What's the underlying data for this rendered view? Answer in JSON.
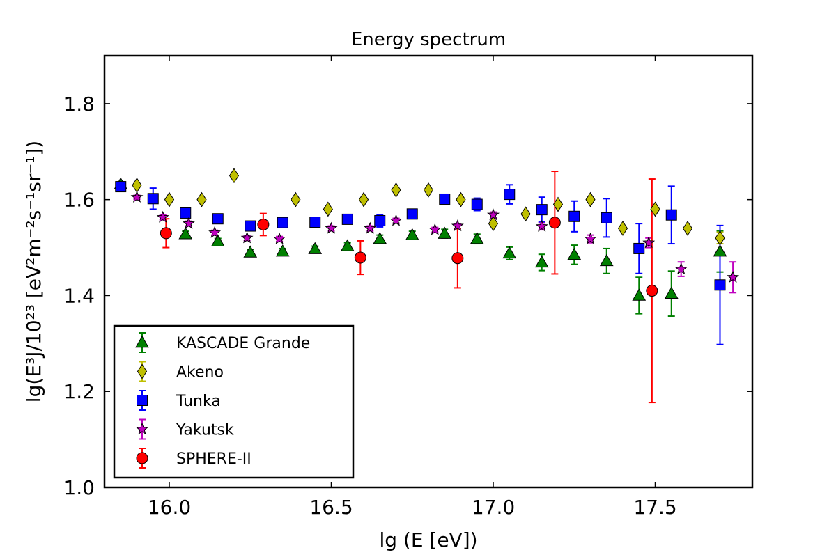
{
  "chart_data": {
    "type": "scatter",
    "title": "Energy spectrum",
    "xlabel": "lg (E [eV])",
    "ylabel": "lg(E³J/10²³ [eV²m⁻²s⁻¹sr⁻¹])",
    "xlim": [
      15.8,
      17.8
    ],
    "ylim": [
      1.0,
      1.9
    ],
    "xticks": [
      16.0,
      16.5,
      17.0,
      17.5
    ],
    "xtick_labels": [
      "16.0",
      "16.5",
      "17.0",
      "17.5"
    ],
    "yticks": [
      1.0,
      1.2,
      1.4,
      1.6,
      1.8
    ],
    "ytick_labels": [
      "1.0",
      "1.2",
      "1.4",
      "1.6",
      "1.8"
    ],
    "grid": false,
    "legend_position": "lower-left",
    "series": [
      {
        "name": "KASCADE Grande",
        "marker": "triangle",
        "color": "#008000",
        "points": [
          {
            "x": 15.85,
            "y": 1.632,
            "err": 0.005
          },
          {
            "x": 16.05,
            "y": 1.528,
            "err": 0.006
          },
          {
            "x": 16.15,
            "y": 1.513,
            "err": 0.006
          },
          {
            "x": 16.25,
            "y": 1.49,
            "err": 0.006
          },
          {
            "x": 16.35,
            "y": 1.492,
            "err": 0.006
          },
          {
            "x": 16.45,
            "y": 1.497,
            "err": 0.006
          },
          {
            "x": 16.55,
            "y": 1.503,
            "err": 0.007
          },
          {
            "x": 16.65,
            "y": 1.518,
            "err": 0.008
          },
          {
            "x": 16.75,
            "y": 1.526,
            "err": 0.008
          },
          {
            "x": 16.85,
            "y": 1.529,
            "err": 0.009
          },
          {
            "x": 16.95,
            "y": 1.518,
            "err": 0.01
          },
          {
            "x": 17.05,
            "y": 1.488,
            "err": 0.013
          },
          {
            "x": 17.15,
            "y": 1.469,
            "err": 0.017
          },
          {
            "x": 17.25,
            "y": 1.485,
            "err": 0.02
          },
          {
            "x": 17.35,
            "y": 1.472,
            "err": 0.026
          },
          {
            "x": 17.45,
            "y": 1.4,
            "err": 0.038
          },
          {
            "x": 17.55,
            "y": 1.404,
            "err": 0.047
          },
          {
            "x": 17.7,
            "y": 1.492,
            "err": 0.043
          }
        ]
      },
      {
        "name": "Akeno",
        "marker": "diamond",
        "color": "#bfbf00",
        "points": [
          {
            "x": 15.9,
            "y": 1.63,
            "err": 0
          },
          {
            "x": 16.0,
            "y": 1.6,
            "err": 0
          },
          {
            "x": 16.1,
            "y": 1.6,
            "err": 0
          },
          {
            "x": 16.2,
            "y": 1.65,
            "err": 0
          },
          {
            "x": 16.39,
            "y": 1.6,
            "err": 0
          },
          {
            "x": 16.49,
            "y": 1.58,
            "err": 0
          },
          {
            "x": 16.6,
            "y": 1.6,
            "err": 0
          },
          {
            "x": 16.7,
            "y": 1.62,
            "err": 0
          },
          {
            "x": 16.8,
            "y": 1.62,
            "err": 0
          },
          {
            "x": 16.9,
            "y": 1.6,
            "err": 0
          },
          {
            "x": 17.0,
            "y": 1.55,
            "err": 0
          },
          {
            "x": 17.1,
            "y": 1.57,
            "err": 0
          },
          {
            "x": 17.2,
            "y": 1.59,
            "err": 0
          },
          {
            "x": 17.3,
            "y": 1.6,
            "err": 0
          },
          {
            "x": 17.4,
            "y": 1.54,
            "err": 0
          },
          {
            "x": 17.5,
            "y": 1.58,
            "err": 0
          },
          {
            "x": 17.6,
            "y": 1.54,
            "err": 0
          },
          {
            "x": 17.7,
            "y": 1.52,
            "err": 0.012
          }
        ]
      },
      {
        "name": "Tunka",
        "marker": "square",
        "color": "#0000ff",
        "points": [
          {
            "x": 15.85,
            "y": 1.627,
            "err": 0.008
          },
          {
            "x": 15.95,
            "y": 1.602,
            "err": 0.022
          },
          {
            "x": 16.05,
            "y": 1.572,
            "err": 0.008
          },
          {
            "x": 16.15,
            "y": 1.56,
            "err": 0.008
          },
          {
            "x": 16.25,
            "y": 1.545,
            "err": 0.008
          },
          {
            "x": 16.35,
            "y": 1.552,
            "err": 0.008
          },
          {
            "x": 16.45,
            "y": 1.553,
            "err": 0.008
          },
          {
            "x": 16.55,
            "y": 1.559,
            "err": 0.008
          },
          {
            "x": 16.65,
            "y": 1.556,
            "err": 0.013
          },
          {
            "x": 16.75,
            "y": 1.57,
            "err": 0.008
          },
          {
            "x": 16.85,
            "y": 1.601,
            "err": 0.008
          },
          {
            "x": 16.95,
            "y": 1.59,
            "err": 0.013
          },
          {
            "x": 17.05,
            "y": 1.611,
            "err": 0.02
          },
          {
            "x": 17.15,
            "y": 1.579,
            "err": 0.026
          },
          {
            "x": 17.25,
            "y": 1.565,
            "err": 0.032
          },
          {
            "x": 17.35,
            "y": 1.562,
            "err": 0.04
          },
          {
            "x": 17.45,
            "y": 1.498,
            "err": 0.052
          },
          {
            "x": 17.55,
            "y": 1.568,
            "err": 0.06
          },
          {
            "x": 17.7,
            "y": 1.422,
            "err": 0.124
          }
        ]
      },
      {
        "name": "Yakutsk",
        "marker": "star",
        "color": "#bf00bf",
        "points": [
          {
            "x": 15.9,
            "y": 1.605,
            "err": 0.004
          },
          {
            "x": 15.98,
            "y": 1.563,
            "err": 0.005
          },
          {
            "x": 16.06,
            "y": 1.55,
            "err": 0.005
          },
          {
            "x": 16.14,
            "y": 1.531,
            "err": 0.005
          },
          {
            "x": 16.24,
            "y": 1.52,
            "err": 0.005
          },
          {
            "x": 16.34,
            "y": 1.518,
            "err": 0.005
          },
          {
            "x": 16.5,
            "y": 1.54,
            "err": 0.005
          },
          {
            "x": 16.62,
            "y": 1.54,
            "err": 0.005
          },
          {
            "x": 16.7,
            "y": 1.556,
            "err": 0.005
          },
          {
            "x": 16.82,
            "y": 1.537,
            "err": 0.005
          },
          {
            "x": 16.89,
            "y": 1.545,
            "err": 0.005
          },
          {
            "x": 17.0,
            "y": 1.568,
            "err": 0.006
          },
          {
            "x": 17.15,
            "y": 1.544,
            "err": 0.007
          },
          {
            "x": 17.3,
            "y": 1.518,
            "err": 0.008
          },
          {
            "x": 17.48,
            "y": 1.51,
            "err": 0.01
          },
          {
            "x": 17.58,
            "y": 1.455,
            "err": 0.015
          },
          {
            "x": 17.74,
            "y": 1.438,
            "err": 0.032
          }
        ]
      },
      {
        "name": "SPHERE-II",
        "marker": "circle",
        "color": "#ff0000",
        "points": [
          {
            "x": 15.99,
            "y": 1.53,
            "err": 0.03
          },
          {
            "x": 16.29,
            "y": 1.548,
            "err": 0.023
          },
          {
            "x": 16.59,
            "y": 1.479,
            "err": 0.035
          },
          {
            "x": 16.89,
            "y": 1.478,
            "err": 0.062
          },
          {
            "x": 17.19,
            "y": 1.552,
            "err": 0.107
          },
          {
            "x": 17.49,
            "y": 1.41,
            "err": 0.233
          }
        ]
      }
    ]
  }
}
